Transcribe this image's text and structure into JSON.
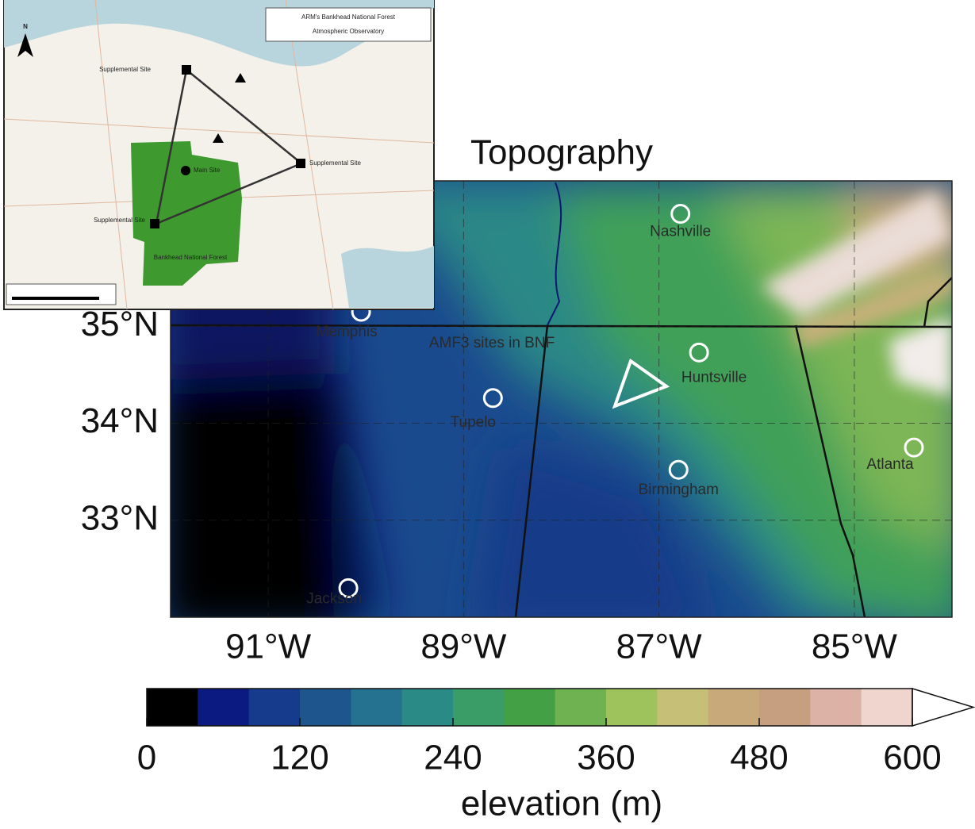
{
  "title": "Topography",
  "map": {
    "lonlim": [
      -92,
      -84
    ],
    "latlim": [
      32,
      36.5
    ],
    "lonticks": [
      {
        "value": -91,
        "label": "91°W"
      },
      {
        "value": -89,
        "label": "89°W"
      },
      {
        "value": -87,
        "label": "87°W"
      },
      {
        "value": -85,
        "label": "85°W"
      }
    ],
    "latticks": [
      {
        "value": 35,
        "label": "35°N"
      },
      {
        "value": 34,
        "label": "34°N"
      },
      {
        "value": 33,
        "label": "33°N"
      }
    ],
    "cities": [
      {
        "name": "Nashville",
        "lat": 36.16,
        "lon": -86.78
      },
      {
        "name": "Memphis",
        "lat": 35.15,
        "lon": -90.05
      },
      {
        "name": "Huntsville",
        "lat": 34.73,
        "lon": -86.59
      },
      {
        "name": "Tupelo",
        "lat": 34.26,
        "lon": -88.7
      },
      {
        "name": "Birmingham",
        "lat": 33.52,
        "lon": -86.8
      },
      {
        "name": "Atlanta",
        "lat": 33.75,
        "lon": -84.39
      },
      {
        "name": "Jackson",
        "lat": 32.3,
        "lon": -90.18
      }
    ],
    "annotation": "AMF3 sites in BNF"
  },
  "colorbar": {
    "lim": [
      0,
      600
    ],
    "ticks": [
      0,
      120,
      240,
      360,
      480,
      600
    ],
    "label": "elevation (m)",
    "colors": [
      "#000000",
      "#0b1a80",
      "#163b8c",
      "#1d558c",
      "#247290",
      "#2a8a86",
      "#3a9c66",
      "#44a044",
      "#6fb251",
      "#9ec25c",
      "#c6bf78",
      "#c8a97a",
      "#c69f80",
      "#dcb2a6",
      "#f0d4ce"
    ]
  },
  "inset": {
    "title": [
      "ARM's Bankhead National Forest",
      "Atmospheric Observatory"
    ],
    "north": "N",
    "main_site": "Main Site",
    "supplemental": [
      "Supplemental Site",
      "Supplemental Site",
      "Supplemental Site"
    ],
    "forest": "Bankhead National Forest"
  }
}
